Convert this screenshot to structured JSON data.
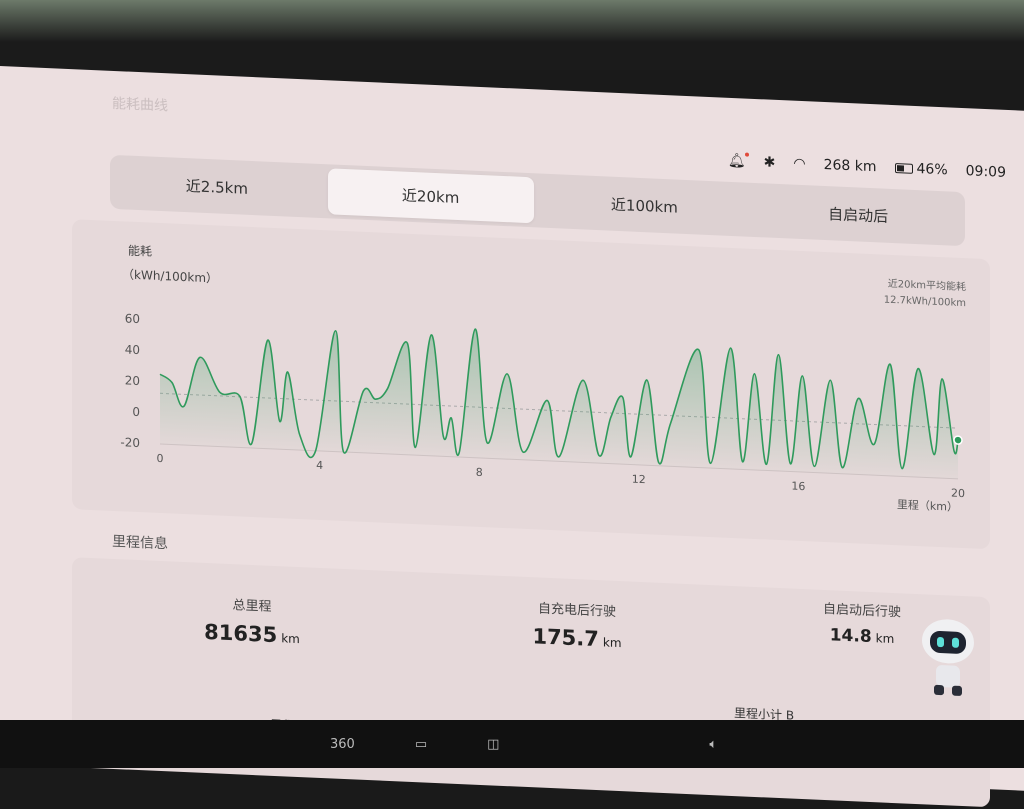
{
  "section_title": "能耗曲线",
  "status": {
    "range": "268 km",
    "battery": "46%",
    "battery_level": 0.46,
    "time": "09:09",
    "icons": [
      "bell-icon",
      "bluetooth-icon",
      "wifi-icon",
      "battery-icon"
    ]
  },
  "tabs": [
    {
      "label": "近2.5km",
      "active": false
    },
    {
      "label": "近20km",
      "active": true
    },
    {
      "label": "近100km",
      "active": false
    },
    {
      "label": "自启动后",
      "active": false
    }
  ],
  "chart_data": {
    "type": "area",
    "ylabel": "能耗",
    "yunit": "（kWh/100km）",
    "xlabel": "里程（km）",
    "xlim": [
      0,
      20
    ],
    "ylim": [
      -20,
      60
    ],
    "xticks": [
      "0",
      "4",
      "8",
      "12",
      "16",
      "20"
    ],
    "yticks": [
      "60",
      "40",
      "20",
      "0",
      "-20"
    ],
    "avg_label": "近20km平均能耗",
    "avg_value_label": "12.7kWh/100km",
    "avg_value": 12.7,
    "line_color": "#2f9a5c",
    "points": [
      [
        0,
        25
      ],
      [
        0.3,
        20
      ],
      [
        0.6,
        5
      ],
      [
        1.0,
        37
      ],
      [
        1.5,
        15
      ],
      [
        2.0,
        13
      ],
      [
        2.3,
        -17
      ],
      [
        2.7,
        50
      ],
      [
        3.0,
        -2
      ],
      [
        3.2,
        30
      ],
      [
        3.5,
        -10
      ],
      [
        3.9,
        -20
      ],
      [
        4.4,
        58
      ],
      [
        4.6,
        -20
      ],
      [
        5.1,
        20
      ],
      [
        5.4,
        15
      ],
      [
        5.7,
        22
      ],
      [
        6.2,
        52
      ],
      [
        6.4,
        -15
      ],
      [
        6.8,
        58
      ],
      [
        7.1,
        -7
      ],
      [
        7.3,
        5
      ],
      [
        7.5,
        -17
      ],
      [
        7.9,
        63
      ],
      [
        8.2,
        -10
      ],
      [
        8.7,
        35
      ],
      [
        9.1,
        -15
      ],
      [
        9.7,
        19
      ],
      [
        10.0,
        -17
      ],
      [
        10.6,
        33
      ],
      [
        11.0,
        -15
      ],
      [
        11.3,
        10
      ],
      [
        11.6,
        23
      ],
      [
        11.8,
        -15
      ],
      [
        12.2,
        35
      ],
      [
        12.5,
        -18
      ],
      [
        12.8,
        8
      ],
      [
        13.5,
        56
      ],
      [
        13.8,
        -17
      ],
      [
        14.3,
        58
      ],
      [
        14.6,
        -15
      ],
      [
        14.9,
        42
      ],
      [
        15.2,
        -16
      ],
      [
        15.5,
        55
      ],
      [
        15.8,
        -15
      ],
      [
        16.1,
        42
      ],
      [
        16.4,
        -16
      ],
      [
        16.8,
        40
      ],
      [
        17.1,
        -16
      ],
      [
        17.5,
        29
      ],
      [
        17.9,
        0
      ],
      [
        18.3,
        52
      ],
      [
        18.6,
        -15
      ],
      [
        19.0,
        50
      ],
      [
        19.4,
        -5
      ],
      [
        19.6,
        44
      ],
      [
        19.9,
        -2
      ],
      [
        20.0,
        5
      ]
    ]
  },
  "mileage": {
    "title": "里程信息",
    "total": {
      "label": "总里程",
      "value": "81635",
      "unit": "km"
    },
    "since_charge": {
      "label": "自充电后行驶",
      "value": "175.7",
      "unit": "km"
    },
    "since_start": {
      "label": "自启动后行驶",
      "value": "14.8",
      "unit": "km"
    },
    "trip_a": "里程小计 A",
    "trip_b": "里程小计 B"
  },
  "dock": {
    "label_360": "360"
  }
}
